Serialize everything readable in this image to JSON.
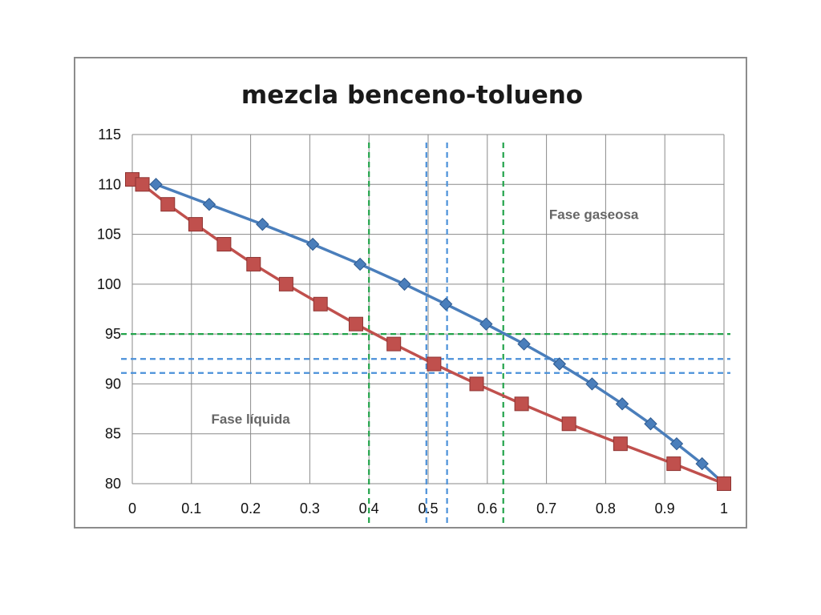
{
  "chart_data": {
    "type": "line",
    "title": "mezcla benceno-tolueno",
    "xlabel": "",
    "ylabel": "",
    "xlim": [
      0,
      1
    ],
    "ylim": [
      80,
      115
    ],
    "xticks": [
      "0",
      "0.1",
      "0.2",
      "0.3",
      "0.4",
      "0.5",
      "0.6",
      "0.7",
      "0.8",
      "0.9",
      "1"
    ],
    "yticks": [
      "80",
      "85",
      "90",
      "95",
      "100",
      "105",
      "110",
      "115"
    ],
    "grid": true,
    "series": [
      {
        "color": "#4a7ebb",
        "marker": "diamond",
        "points": [
          [
            0.04,
            110
          ],
          [
            0.13,
            108
          ],
          [
            0.22,
            106
          ],
          [
            0.305,
            104
          ],
          [
            0.385,
            102
          ],
          [
            0.46,
            100
          ],
          [
            0.53,
            98
          ],
          [
            0.598,
            96
          ],
          [
            0.662,
            94
          ],
          [
            0.722,
            92
          ],
          [
            0.777,
            90
          ],
          [
            0.828,
            88
          ],
          [
            0.876,
            86
          ],
          [
            0.92,
            84
          ],
          [
            0.963,
            82
          ],
          [
            1,
            80
          ]
        ]
      },
      {
        "color": "#c0504d",
        "marker": "square",
        "points": [
          [
            0,
            110.5
          ],
          [
            0.017,
            110
          ],
          [
            0.06,
            108
          ],
          [
            0.107,
            106
          ],
          [
            0.155,
            104
          ],
          [
            0.205,
            102
          ],
          [
            0.26,
            100
          ],
          [
            0.318,
            98
          ],
          [
            0.378,
            96
          ],
          [
            0.442,
            94
          ],
          [
            0.51,
            92
          ],
          [
            0.582,
            90
          ],
          [
            0.658,
            88
          ],
          [
            0.738,
            86
          ],
          [
            0.825,
            84
          ],
          [
            0.915,
            82
          ],
          [
            1,
            80
          ]
        ]
      }
    ],
    "reference_lines": [
      {
        "orientation": "horizontal",
        "value": 95,
        "color": "#22a34a"
      },
      {
        "orientation": "horizontal",
        "value": 92.5,
        "color": "#4a90d9"
      },
      {
        "orientation": "horizontal",
        "value": 91.1,
        "color": "#4a90d9"
      },
      {
        "orientation": "vertical",
        "value": 0.4,
        "color": "#22a34a"
      },
      {
        "orientation": "vertical",
        "value": 0.627,
        "color": "#22a34a"
      },
      {
        "orientation": "vertical",
        "value": 0.497,
        "color": "#4a90d9"
      },
      {
        "orientation": "vertical",
        "value": 0.532,
        "color": "#4a90d9"
      }
    ],
    "annotations": [
      {
        "text": "Fase gaseosa",
        "x": 0.78,
        "y": 107
      },
      {
        "text": "Fase líquida",
        "x": 0.2,
        "y": 86.5
      }
    ]
  }
}
